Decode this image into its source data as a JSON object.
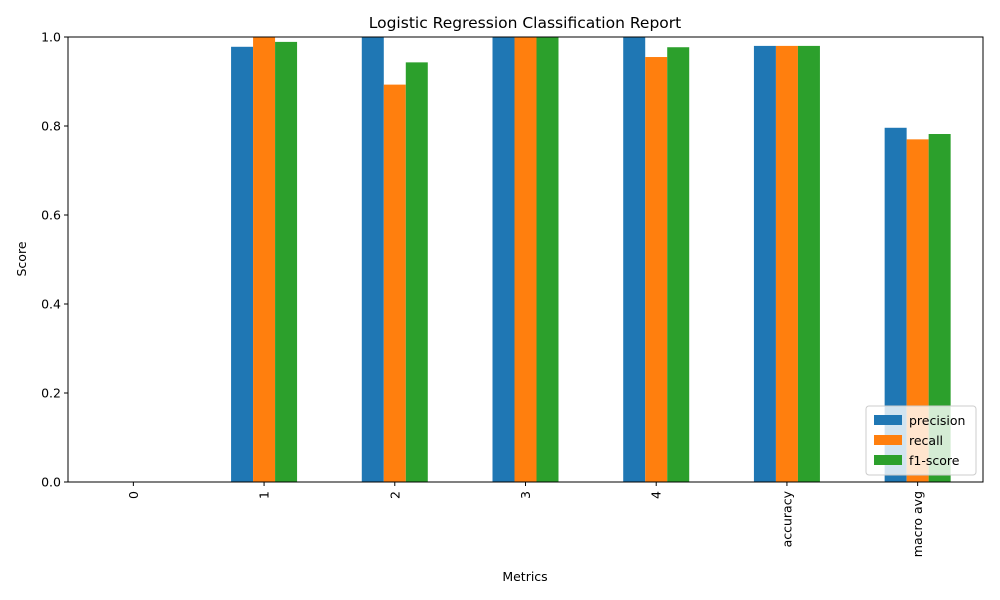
{
  "chart_data": {
    "type": "bar",
    "title": "Logistic Regression Classification Report",
    "xlabel": "Metrics",
    "ylabel": "Score",
    "ylim": [
      0,
      1.0
    ],
    "yticks": [
      "0.0",
      "0.2",
      "0.4",
      "0.6",
      "0.8",
      "1.0"
    ],
    "categories": [
      "0",
      "1",
      "2",
      "3",
      "4",
      "accuracy",
      "macro avg"
    ],
    "series": [
      {
        "name": "precision",
        "color": "#1f77b4",
        "values": [
          0.0,
          0.978,
          1.0,
          1.0,
          1.0,
          0.98,
          0.796
        ]
      },
      {
        "name": "recall",
        "color": "#ff7f0e",
        "values": [
          0.0,
          1.0,
          0.893,
          1.0,
          0.955,
          0.98,
          0.77
        ]
      },
      {
        "name": "f1-score",
        "color": "#2ca02c",
        "values": [
          0.0,
          0.989,
          0.943,
          1.0,
          0.977,
          0.98,
          0.782
        ]
      }
    ],
    "grid": false,
    "legend": "lower-right"
  }
}
